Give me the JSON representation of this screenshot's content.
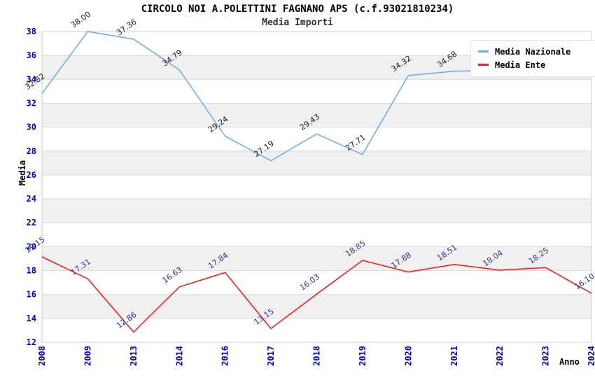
{
  "header": {
    "title": "CIRCOLO NOI A.POLETTINI FAGNANO APS (c.f.93021810234)",
    "subtitle": "Media Importi"
  },
  "axes": {
    "y_title": "Media",
    "x_title": "Anno",
    "tick_label_color": "#0000cc"
  },
  "legend": {
    "items": [
      {
        "label": "Media Nazionale",
        "color": "#74aee0"
      },
      {
        "label": "Media Ente",
        "color": "#ee2222"
      }
    ]
  },
  "colors": {
    "band_white": "#ffffff",
    "band_gray": "#f0f0f0",
    "gridline": "#d9d9d9",
    "plot_border": "#cccccc"
  },
  "chart_data": {
    "type": "line",
    "title": "CIRCOLO NOI A.POLETTINI FAGNANO APS (c.f.93021810234)",
    "subtitle": "Media Importi",
    "xlabel": "Anno",
    "ylabel": "Media",
    "categories": [
      "2008",
      "2009",
      "2013",
      "2014",
      "2016",
      "2017",
      "2018",
      "2019",
      "2020",
      "2021",
      "2022",
      "2023",
      "2024"
    ],
    "ylim": [
      12,
      38
    ],
    "ytick_step": 2,
    "grid": true,
    "legend_position": "top-right",
    "series": [
      {
        "name": "Media Nazionale",
        "color": "#74aee0",
        "label_color": "#222222",
        "values": [
          32.82,
          38.0,
          37.36,
          34.79,
          29.24,
          27.19,
          29.43,
          27.71,
          34.32,
          34.68,
          34.75,
          34.8,
          34.83
        ],
        "point_labels": [
          "32.82",
          "38.00",
          "37.36",
          "34.79",
          "29.24",
          "27.19",
          "29.43",
          "27.71",
          "34.32",
          "34.68",
          null,
          null,
          "34.83"
        ]
      },
      {
        "name": "Media Ente",
        "color": "#ee2222",
        "label_color": "#333399",
        "values": [
          19.15,
          17.31,
          12.86,
          16.63,
          17.84,
          13.15,
          16.03,
          18.85,
          17.88,
          18.51,
          18.04,
          18.25,
          16.1
        ],
        "point_labels": [
          "19.15",
          "17.31",
          "12.86",
          "16.63",
          "17.84",
          "13.15",
          "16.03",
          "18.85",
          "17.88",
          "18.51",
          "18.04",
          "18.25",
          "16.10"
        ]
      }
    ]
  }
}
